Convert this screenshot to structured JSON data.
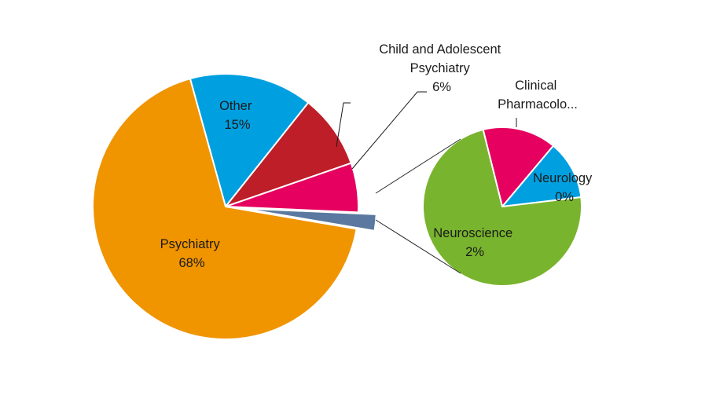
{
  "chart_data": {
    "type": "pie-of-pie",
    "main_pie": {
      "slices": [
        {
          "key": "other",
          "label": "Other",
          "percent_label": "15%",
          "value": 15,
          "color": "#00A0E0"
        },
        {
          "key": "unlabeled",
          "label": "",
          "percent_label": "",
          "value": 9,
          "color": "#BE1E28"
        },
        {
          "key": "child",
          "label": "Child and Adolescent Psychiatry",
          "label_lines": [
            "Child and Adolescent",
            "Psychiatry"
          ],
          "percent_label": "6%",
          "value": 6,
          "color": "#E6005F"
        },
        {
          "key": "grouped",
          "label": "",
          "percent_label": "",
          "value": 2,
          "color": "#5A78A0",
          "exploded": true
        },
        {
          "key": "psychiatry",
          "label": "Psychiatry",
          "percent_label": "68%",
          "value": 68,
          "color": "#F09400"
        }
      ]
    },
    "secondary_pie": {
      "slices": [
        {
          "key": "clinical",
          "label": "Clinical Pharmacolo...",
          "label_lines": [
            "Clinical",
            "Pharmacolo..."
          ],
          "percent_label": "",
          "value": 15,
          "color": "#E6005F"
        },
        {
          "key": "neurology",
          "label": "Neurology",
          "percent_label": "0%",
          "value": 12,
          "color": "#00A0E0"
        },
        {
          "key": "neuroscience",
          "label": "Neuroscience",
          "percent_label": "2%",
          "value": 73,
          "color": "#78B42D"
        }
      ]
    }
  }
}
